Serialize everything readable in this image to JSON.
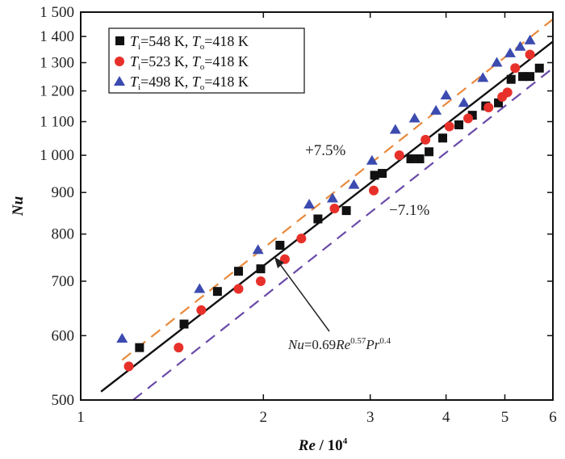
{
  "chart_data": {
    "type": "scatter",
    "x_scale": "log",
    "y_scale": "log",
    "xlim": [
      1.0,
      6.0
    ],
    "ylim": [
      500,
      1500
    ],
    "xlabel_main": "Re",
    "xlabel_rest": " / 10",
    "xlabel_sup": "4",
    "ylabel": "Nu",
    "x_ticks": [
      {
        "v": 1,
        "label": "1"
      },
      {
        "v": 2,
        "label": "2"
      },
      {
        "v": 3,
        "label": "3"
      },
      {
        "v": 4,
        "label": "4"
      },
      {
        "v": 5,
        "label": "5"
      },
      {
        "v": 6,
        "label": "6"
      }
    ],
    "y_ticks": [
      {
        "v": 500,
        "label": "500"
      },
      {
        "v": 600,
        "label": "600"
      },
      {
        "v": 700,
        "label": "700"
      },
      {
        "v": 800,
        "label": "800"
      },
      {
        "v": 900,
        "label": "900"
      },
      {
        "v": 1000,
        "label": "1 000"
      },
      {
        "v": 1100,
        "label": "1 100"
      },
      {
        "v": 1200,
        "label": "1 200"
      },
      {
        "v": 1300,
        "label": "1 300"
      },
      {
        "v": 1400,
        "label": "1 400"
      },
      {
        "v": 1500,
        "label": "1 500"
      }
    ],
    "series": [
      {
        "name": "T=548 K, T=418 K",
        "t1": "T",
        "t1_sub": "i",
        "v1": "=548 K, ",
        "t2": "T",
        "t2_sub": "o",
        "v2": "=418 K",
        "marker": "square",
        "color": "#111111",
        "points": [
          [
            1.25,
            580
          ],
          [
            1.48,
            620
          ],
          [
            1.68,
            680
          ],
          [
            1.82,
            720
          ],
          [
            1.98,
            725
          ],
          [
            2.13,
            775
          ],
          [
            2.46,
            835
          ],
          [
            2.74,
            855
          ],
          [
            3.05,
            945
          ],
          [
            3.14,
            950
          ],
          [
            3.5,
            990
          ],
          [
            3.62,
            990
          ],
          [
            3.75,
            1010
          ],
          [
            3.95,
            1050
          ],
          [
            4.2,
            1090
          ],
          [
            4.42,
            1120
          ],
          [
            4.65,
            1150
          ],
          [
            4.88,
            1160
          ],
          [
            5.12,
            1240
          ],
          [
            5.35,
            1250
          ],
          [
            5.5,
            1250
          ],
          [
            5.7,
            1280
          ]
        ]
      },
      {
        "name": "T=523 K, T=418 K",
        "t1": "T",
        "t1_sub": "i",
        "v1": "=523 K, ",
        "t2": "T",
        "t2_sub": "o",
        "v2": "=418 K",
        "marker": "circle",
        "color": "#e8302a",
        "points": [
          [
            1.2,
            550
          ],
          [
            1.45,
            580
          ],
          [
            1.58,
            645
          ],
          [
            1.82,
            685
          ],
          [
            1.98,
            700
          ],
          [
            2.17,
            745
          ],
          [
            2.31,
            790
          ],
          [
            2.62,
            860
          ],
          [
            3.04,
            905
          ],
          [
            3.35,
            1000
          ],
          [
            3.7,
            1045
          ],
          [
            4.05,
            1085
          ],
          [
            4.35,
            1110
          ],
          [
            4.7,
            1145
          ],
          [
            4.95,
            1180
          ],
          [
            5.05,
            1195
          ],
          [
            5.2,
            1280
          ],
          [
            5.5,
            1330
          ]
        ]
      },
      {
        "name": "T=498 K, T=418 K",
        "t1": "T",
        "t1_sub": "i",
        "v1": "=498 K, ",
        "t2": "T",
        "t2_sub": "o",
        "v2": "=418 K",
        "marker": "triangle",
        "color": "#3c4bb0",
        "points": [
          [
            1.17,
            595
          ],
          [
            1.57,
            685
          ],
          [
            1.96,
            765
          ],
          [
            2.38,
            870
          ],
          [
            2.6,
            885
          ],
          [
            2.82,
            920
          ],
          [
            3.02,
            985
          ],
          [
            3.3,
            1075
          ],
          [
            3.55,
            1110
          ],
          [
            3.85,
            1135
          ],
          [
            4.0,
            1185
          ],
          [
            4.28,
            1160
          ],
          [
            4.6,
            1245
          ],
          [
            4.85,
            1300
          ],
          [
            5.1,
            1335
          ],
          [
            5.3,
            1360
          ],
          [
            5.5,
            1385
          ]
        ]
      }
    ],
    "fit": {
      "label_main": "Nu",
      "label_rest": "=0.69",
      "Re": "Re",
      "Re_exp": "0.57",
      "Pr": "Pr",
      "Pr_exp": "0.4",
      "x0": 1.08,
      "x1": 6.0,
      "y0": 512,
      "y1": 1380
    },
    "bands": [
      {
        "label": "+7.5%",
        "color": "#e88a3c",
        "x0": 1.17,
        "x1": 6.0,
        "y0": 560,
        "y1": 1470
      },
      {
        "label": "−7.1%",
        "color": "#6a4aa8",
        "x0": 1.22,
        "x1": 6.0,
        "y0": 500,
        "y1": 1280
      }
    ]
  }
}
